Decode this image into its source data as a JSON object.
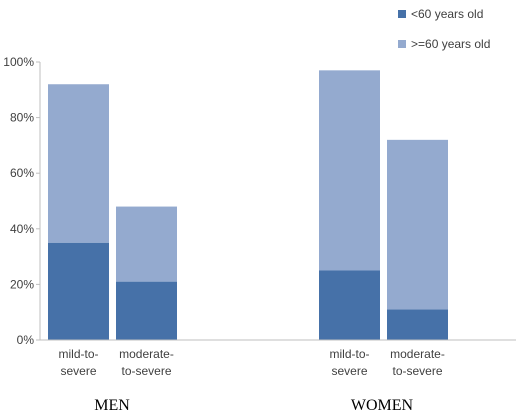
{
  "chart_data": {
    "type": "bar",
    "stacked": true,
    "groups": [
      {
        "label": "MEN",
        "categories": [
          {
            "label_lines": [
              "mild-to-",
              "severe"
            ],
            "values": [
              35,
              57
            ]
          },
          {
            "label_lines": [
              "moderate-",
              "to-severe"
            ],
            "values": [
              21,
              27
            ]
          }
        ]
      },
      {
        "label": "WOMEN",
        "categories": [
          {
            "label_lines": [
              "mild-to-",
              "severe"
            ],
            "values": [
              25,
              72
            ]
          },
          {
            "label_lines": [
              "moderate-",
              "to-severe"
            ],
            "values": [
              11,
              61
            ]
          }
        ]
      }
    ],
    "series": [
      {
        "name": "<60 years old",
        "color": "#4671A8"
      },
      {
        "name": ">=60 years old",
        "color": "#94AACF"
      }
    ],
    "ylim": [
      0,
      100
    ],
    "y_ticks": [
      "0%",
      "20%",
      "40%",
      "60%",
      "80%",
      "100%"
    ],
    "y_tick_values": [
      0,
      20,
      40,
      60,
      80,
      100
    ],
    "grid": false,
    "legend_position": "top-right"
  }
}
